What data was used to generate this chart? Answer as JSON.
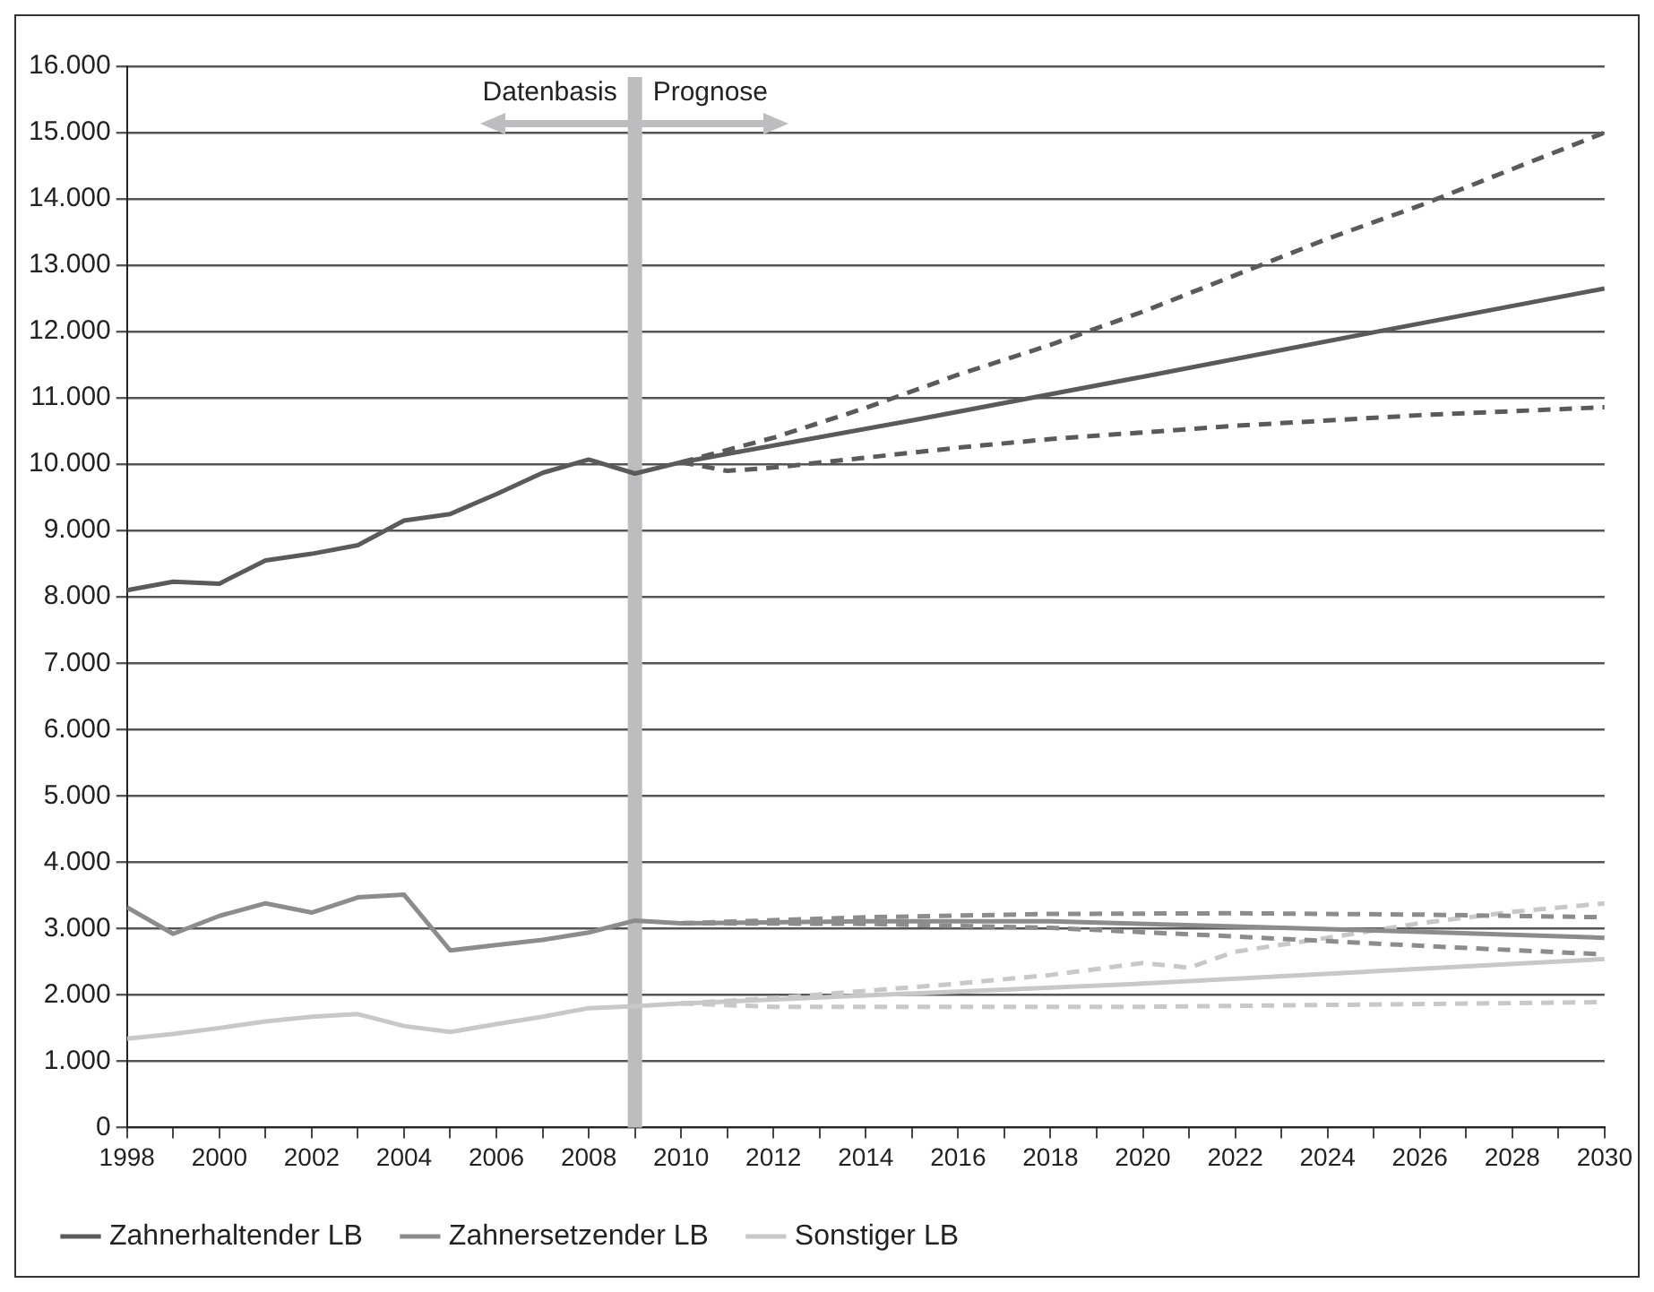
{
  "chart_data": {
    "type": "line",
    "annotations": [
      "Datenbasis",
      "Prognose"
    ],
    "xlim": [
      1998,
      2030
    ],
    "xticks": [
      1998,
      {
        "value": 1999,
        "label": null
      },
      2000,
      {
        "value": 2001,
        "label": null
      },
      2002,
      {
        "value": 2003,
        "label": null
      },
      2004,
      {
        "value": 2005,
        "label": null
      },
      2006,
      {
        "value": 2007,
        "label": null
      },
      2008,
      {
        "value": 2009,
        "label": null
      },
      2010,
      {
        "value": 2011,
        "label": null
      },
      2012,
      {
        "value": 2013,
        "label": null
      },
      2014,
      {
        "value": 2015,
        "label": null
      },
      2016,
      {
        "value": 2017,
        "label": null
      },
      2018,
      {
        "value": 2019,
        "label": null
      },
      2020,
      {
        "value": 2021,
        "label": null
      },
      2022,
      {
        "value": 2023,
        "label": null
      },
      2024,
      {
        "value": 2025,
        "label": null
      },
      2026,
      {
        "value": 2027,
        "label": null
      },
      2028,
      {
        "value": 2029,
        "label": null
      },
      2030
    ],
    "ylim": [
      0,
      16000
    ],
    "yticks": [
      0,
      {
        "value": 1000,
        "label": "1.000"
      },
      {
        "value": 2000,
        "label": "2.000"
      },
      {
        "value": 3000,
        "label": "3.000"
      },
      {
        "value": 4000,
        "label": "4.000"
      },
      {
        "value": 5000,
        "label": "5.000"
      },
      {
        "value": 6000,
        "label": "6.000"
      },
      {
        "value": 7000,
        "label": "7.000"
      },
      {
        "value": 8000,
        "label": "8.000"
      },
      {
        "value": 9000,
        "label": "9.000"
      },
      {
        "value": 10000,
        "label": "10.000"
      },
      {
        "value": 11000,
        "label": "11.000"
      },
      {
        "value": 12000,
        "label": "12.000"
      },
      {
        "value": 13000,
        "label": "13.000"
      },
      {
        "value": 14000,
        "label": "14.000"
      },
      {
        "value": 15000,
        "label": "15.000"
      },
      {
        "value": 16000,
        "label": "16.000"
      }
    ],
    "grid": "y",
    "legend": "bottom",
    "marker": "none",
    "ref_lines": [
      {
        "axis": "x",
        "value": 2009,
        "color": "#bdbdbf"
      }
    ],
    "series": [
      {
        "name": "Zahnerhaltender LB",
        "color": "#5a5a5a",
        "line_style": "solid",
        "x": [
          1998,
          1999,
          2000,
          2001,
          2002,
          2003,
          2004,
          2005,
          2006,
          2007,
          2008,
          2009,
          2010,
          2015,
          2020,
          2025,
          2030
        ],
        "values": [
          8100,
          8230,
          8200,
          8550,
          8650,
          8780,
          9150,
          9250,
          9550,
          9870,
          10070,
          9860,
          10030,
          10660,
          11320,
          11990,
          12650
        ]
      },
      {
        "name": "Zahnersetzender LB",
        "color": "#8c8c8c",
        "line_style": "solid",
        "x": [
          1998,
          1999,
          2000,
          2001,
          2002,
          2003,
          2004,
          2005,
          2006,
          2007,
          2008,
          2009,
          2010,
          2014,
          2018,
          2022,
          2026,
          2030
        ],
        "values": [
          3320,
          2920,
          3190,
          3380,
          3240,
          3470,
          3510,
          2670,
          2750,
          2830,
          2940,
          3120,
          3080,
          3110,
          3110,
          3030,
          2950,
          2860
        ]
      },
      {
        "name": "Sonstiger LB",
        "color": "#c8c8c8",
        "line_style": "solid",
        "x": [
          1998,
          1999,
          2000,
          2001,
          2002,
          2003,
          2004,
          2005,
          2006,
          2007,
          2008,
          2009,
          2010,
          2020,
          2030
        ],
        "values": [
          1340,
          1410,
          1500,
          1600,
          1670,
          1710,
          1530,
          1440,
          1560,
          1670,
          1800,
          1830,
          1870,
          2170,
          2540
        ]
      },
      {
        "color": "#5a5a5a",
        "line_style": "dashed",
        "x": [
          2010,
          2012,
          2014,
          2016,
          2018,
          2020,
          2022,
          2024,
          2026,
          2028,
          2030
        ],
        "values": [
          10030,
          10400,
          10850,
          11350,
          11800,
          12300,
          12850,
          13400,
          13900,
          14450,
          15000
        ]
      },
      {
        "color": "#5a5a5a",
        "line_style": "dashed",
        "x": [
          2010,
          2011,
          2012,
          2014,
          2016,
          2018,
          2020,
          2022,
          2024,
          2026,
          2028,
          2030
        ],
        "values": [
          10030,
          9900,
          9950,
          10100,
          10250,
          10380,
          10480,
          10580,
          10660,
          10740,
          10800,
          10860
        ]
      },
      {
        "color": "#8c8c8c",
        "line_style": "dashed",
        "x": [
          2010,
          2014,
          2018,
          2022,
          2026,
          2030
        ],
        "values": [
          3080,
          3170,
          3220,
          3230,
          3210,
          3170
        ]
      },
      {
        "color": "#8c8c8c",
        "line_style": "dashed",
        "x": [
          2010,
          2014,
          2018,
          2022,
          2026,
          2030
        ],
        "values": [
          3080,
          3070,
          3010,
          2880,
          2740,
          2610
        ]
      },
      {
        "color": "#c8c8c8",
        "line_style": "dashed",
        "x": [
          2010,
          2012,
          2014,
          2016,
          2018,
          2020,
          2021,
          2022,
          2024,
          2026,
          2028,
          2030
        ],
        "values": [
          1870,
          1950,
          2060,
          2170,
          2300,
          2480,
          2410,
          2650,
          2860,
          3080,
          3250,
          3380
        ]
      },
      {
        "color": "#c8c8c8",
        "line_style": "dashed",
        "x": [
          2010,
          2012,
          2020,
          2030
        ],
        "values": [
          1870,
          1820,
          1820,
          1890
        ]
      }
    ]
  }
}
